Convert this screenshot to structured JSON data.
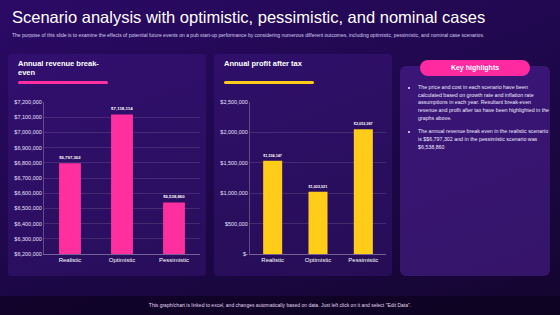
{
  "title": "Scenario analysis with optimistic, pessimistic, and nominal cases",
  "subtitle": "The purpose of this slide is to examine the effects of potential future events on a pub start-up performance by considering numerous different outcomes, including optimistic, pessimistic, and nominal case scenarios.",
  "key_highlights": {
    "title": "Key highlights",
    "items": [
      "The price and cost in each scenario have been calculated based on growth rate and inflation rate assumptions in each year. Resultant break-even revenue and profit after tax have been highlighted in the graphs above.",
      "The annual revenue break even in the realistic scenario is $$6,797,302 and in the pessimistic scenario was $6,538,860"
    ]
  },
  "footer": "This graph/chart is linked to excel, and changes automatically based on data. Just left click on it and select \"Edit Data\".",
  "chart_data": [
    {
      "type": "bar",
      "title": "Annual revenue break-even",
      "categories": [
        "Realistic",
        "Optimistic",
        "Pessimistic"
      ],
      "values": [
        6797302,
        7118114,
        6538860
      ],
      "value_labels": [
        "$6,797,302",
        "$7,118,114",
        "$6,538,860"
      ],
      "data_labels": true,
      "color": "#ff2f9f",
      "ylim": [
        6200000,
        7200000
      ],
      "yticks": [
        {
          "value": 6200000,
          "label": "$6,200,000"
        },
        {
          "value": 6300000,
          "label": "$6,300,000"
        },
        {
          "value": 6400000,
          "label": "$6,400,000"
        },
        {
          "value": 6500000,
          "label": "$6,500,000"
        },
        {
          "value": 6600000,
          "label": "$6,600,000"
        },
        {
          "value": 6700000,
          "label": "$6,700,000"
        },
        {
          "value": 6800000,
          "label": "$6,800,000"
        },
        {
          "value": 6900000,
          "label": "$6,900,000"
        },
        {
          "value": 7000000,
          "label": "$7,000,000"
        },
        {
          "value": 7100000,
          "label": "$7,100,000"
        },
        {
          "value": 7200000,
          "label": "$7,200,000"
        }
      ],
      "grid": true
    },
    {
      "type": "bar",
      "title": "Annual profit after tax",
      "categories": [
        "Realistic",
        "Optimistic",
        "Pessimistic"
      ],
      "values": [
        1534147,
        1022521,
        2053387
      ],
      "value_labels": [
        "$1,534,147",
        "$1,022,521",
        "$2,053,387"
      ],
      "data_labels": true,
      "color": "#ffcc1a",
      "ylim": [
        0,
        2500000
      ],
      "yticks": [
        {
          "value": 0,
          "label": "$-"
        },
        {
          "value": 500000,
          "label": "$500,000"
        },
        {
          "value": 1000000,
          "label": "$1,000,000"
        },
        {
          "value": 1500000,
          "label": "$1,500,000"
        },
        {
          "value": 2000000,
          "label": "$2,000,000"
        },
        {
          "value": 2500000,
          "label": "$2,500,000"
        }
      ],
      "grid": true
    }
  ]
}
